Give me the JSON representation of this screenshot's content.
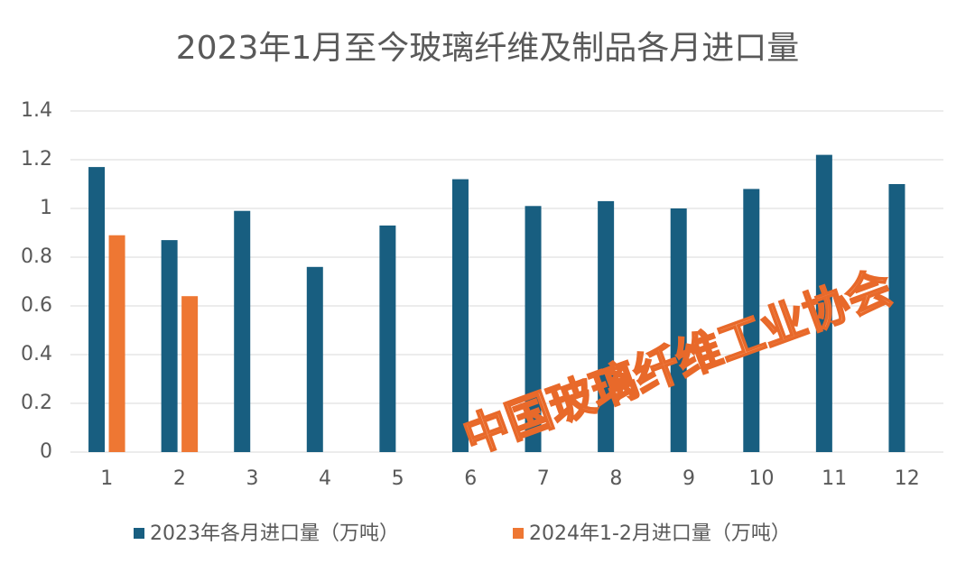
{
  "chart_data": {
    "type": "bar",
    "title": "2023年1月至今玻璃纤维及制品各月进口量",
    "categories": [
      "1",
      "2",
      "3",
      "4",
      "5",
      "6",
      "7",
      "8",
      "9",
      "10",
      "11",
      "12"
    ],
    "series": [
      {
        "name": "2023年各月进口量（万吨）",
        "color": "#185e80",
        "values": [
          1.17,
          0.87,
          0.99,
          0.76,
          0.93,
          1.12,
          1.01,
          1.03,
          1.0,
          1.08,
          1.22,
          1.1
        ]
      },
      {
        "name": "2024年1-2月进口量（万吨）",
        "color": "#ee7733",
        "values": [
          0.89,
          0.64,
          null,
          null,
          null,
          null,
          null,
          null,
          null,
          null,
          null,
          null
        ]
      }
    ],
    "ylim": [
      0,
      1.4
    ],
    "yticks": [
      0,
      0.2,
      0.4,
      0.6,
      0.8,
      1,
      1.2,
      1.4
    ],
    "grid": true,
    "watermark": "中国玻璃纤维工业协会"
  }
}
